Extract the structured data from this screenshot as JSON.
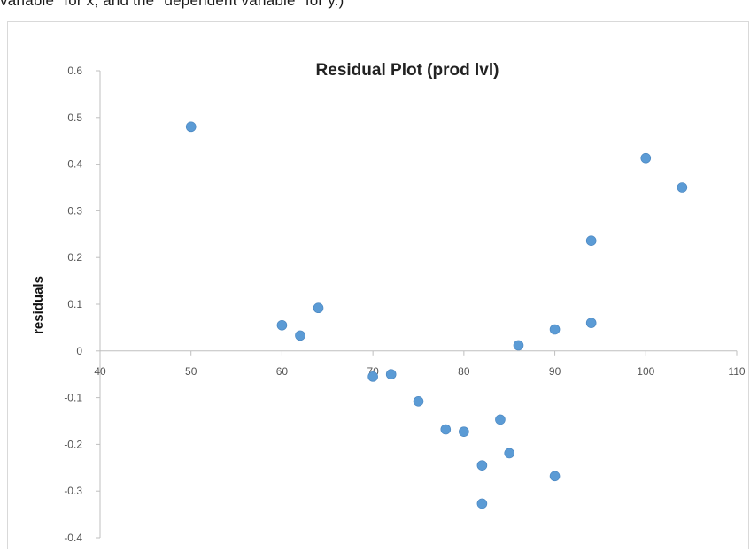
{
  "page": {
    "caption": "variable\" for x, and the \"dependent variable\" for y.)"
  },
  "chart_data": {
    "type": "scatter",
    "title": "Residual Plot (prod lvl)",
    "xlabel": "",
    "ylabel": "residuals",
    "xlim": [
      40,
      110
    ],
    "ylim": [
      -0.4,
      0.6
    ],
    "x_ticks": [
      40,
      50,
      60,
      70,
      80,
      90,
      100,
      110
    ],
    "y_ticks": [
      0.6,
      0.5,
      0.4,
      0.3,
      0.2,
      0.1,
      0,
      -0.1,
      -0.2,
      -0.3,
      -0.4
    ],
    "x_tick_labels": [
      "40",
      "50",
      "60",
      "70",
      "80",
      "90",
      "100",
      "110"
    ],
    "y_tick_labels": [
      "0.6",
      "0.5",
      "0.4",
      "0.3",
      "0.2",
      "0.1",
      "0",
      "-0.1",
      "-0.2",
      "-0.3",
      "-0.4"
    ],
    "grid": false,
    "marker_color": "#5b9bd5",
    "points": [
      {
        "x": 50,
        "y": 0.48
      },
      {
        "x": 60,
        "y": 0.055
      },
      {
        "x": 62,
        "y": 0.033
      },
      {
        "x": 64,
        "y": 0.092
      },
      {
        "x": 70,
        "y": -0.055
      },
      {
        "x": 72,
        "y": -0.05
      },
      {
        "x": 75,
        "y": -0.108
      },
      {
        "x": 78,
        "y": -0.168
      },
      {
        "x": 80,
        "y": -0.173
      },
      {
        "x": 82,
        "y": -0.245
      },
      {
        "x": 82,
        "y": -0.327
      },
      {
        "x": 84,
        "y": -0.147
      },
      {
        "x": 85,
        "y": -0.219
      },
      {
        "x": 86,
        "y": 0.012
      },
      {
        "x": 90,
        "y": 0.046
      },
      {
        "x": 90,
        "y": -0.268
      },
      {
        "x": 94,
        "y": 0.236
      },
      {
        "x": 94,
        "y": 0.06
      },
      {
        "x": 100,
        "y": 0.413
      },
      {
        "x": 104,
        "y": 0.35
      }
    ]
  }
}
